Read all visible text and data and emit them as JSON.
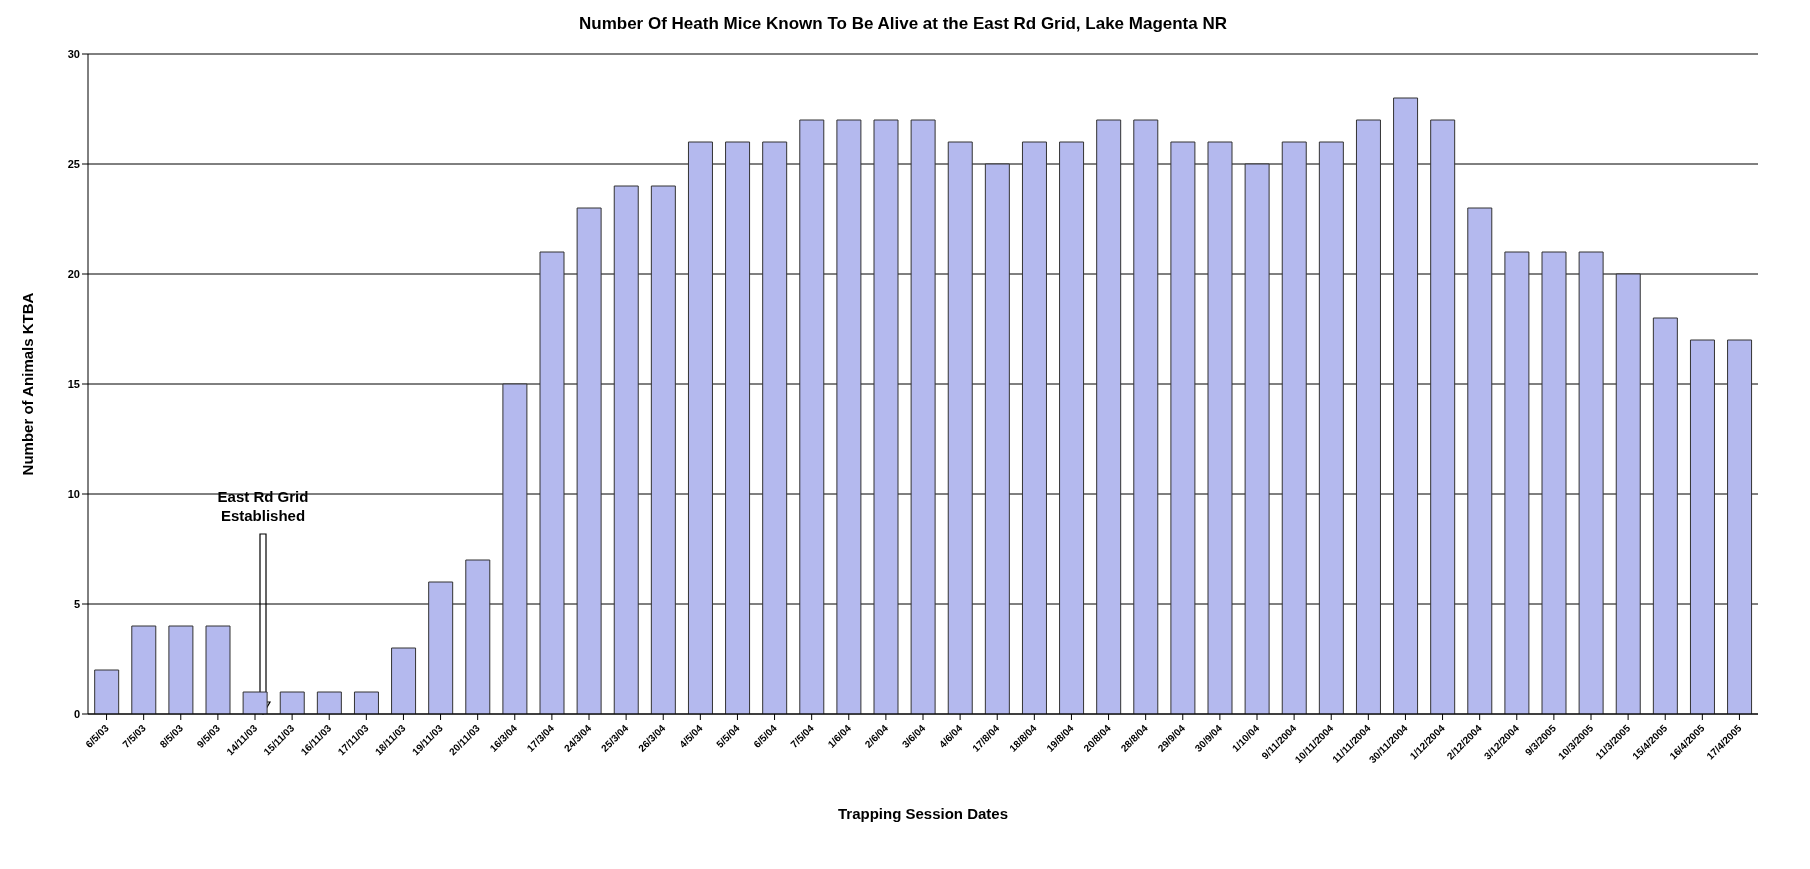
{
  "chart_data": {
    "type": "bar",
    "title": "Number Of Heath Mice Known To Be Alive at the East Rd Grid, Lake Magenta NR",
    "xlabel": "Trapping Session Dates",
    "ylabel": "Number of Animals KTBA",
    "categories": [
      "6/5/03",
      "7/5/03",
      "8/5/03",
      "9/5/03",
      "14/11/03",
      "15/11/03",
      "16/11/03",
      "17/11/03",
      "18/11/03",
      "19/11/03",
      "20/11/03",
      "16/3/04",
      "17/3/04",
      "24/3/04",
      "25/3/04",
      "26/3/04",
      "4/5/04",
      "5/5/04",
      "6/5/04",
      "7/5/04",
      "1/6/04",
      "2/6/04",
      "3/6/04",
      "4/6/04",
      "17/8/04",
      "18/8/04",
      "19/8/04",
      "20/8/04",
      "28/8/04",
      "29/9/04",
      "30/9/04",
      "1/10/04",
      "9/11/2004",
      "10/11/2004",
      "11/11/2004",
      "30/11/2004",
      "1/12/2004",
      "2/12/2004",
      "3/12/2004",
      "9/3/2005",
      "10/3/2005",
      "11/3/2005",
      "15/4/2005",
      "16/4/2005",
      "17/4/2005"
    ],
    "series": [
      {
        "color": "#b4b9ee",
        "values": [
          2,
          4,
          4,
          4,
          1,
          1,
          1,
          1,
          3,
          6,
          7,
          15,
          21,
          23,
          24,
          24,
          26,
          26,
          26,
          27,
          27,
          27,
          27,
          26,
          25,
          26,
          26,
          27,
          27,
          26,
          26,
          25,
          26,
          26,
          27,
          28,
          27,
          23,
          21,
          21,
          21,
          20,
          18,
          17,
          17
        ]
      }
    ],
    "ylim": [
      0,
      30
    ],
    "yticks": [
      0,
      5,
      10,
      15,
      20,
      25,
      30
    ],
    "grid": "y",
    "annotations": [
      "East Rd Grid\nEstablished"
    ]
  }
}
